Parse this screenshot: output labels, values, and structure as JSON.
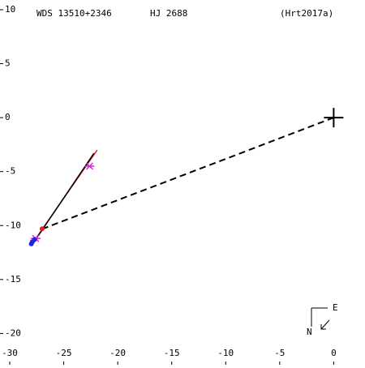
{
  "chart_data": {
    "type": "scatter",
    "header": [
      "WDS 13510+2346",
      "HJ 2688",
      "(Hrt2017a)"
    ],
    "compass": {
      "north": "N",
      "east": "E"
    },
    "xlim": [
      -30.9,
      2.9
    ],
    "ylim": [
      -22.9,
      10.9
    ],
    "xticks": [
      -30,
      -25,
      -20,
      -15,
      -10,
      -5,
      0
    ],
    "yticks": [
      10,
      5,
      0,
      -5,
      -10,
      -15,
      -20
    ],
    "series": [
      {
        "style": "dashed",
        "color": "#000000",
        "x": [
          0,
          -27.2
        ],
        "values": [
          0,
          -10.4
        ]
      },
      {
        "style": "line",
        "color": "#dd2222",
        "x": [
          -28.0,
          -21.9
        ],
        "values": [
          -11.8,
          -3.0
        ]
      },
      {
        "style": "line",
        "color": "#000000",
        "x": [
          -27.8,
          -22.2
        ],
        "values": [
          -11.6,
          -3.3
        ]
      },
      {
        "style": "star",
        "color": "#dd22dd",
        "x": [
          -22.6,
          -27.6
        ],
        "values": [
          -4.5,
          -11.2
        ]
      },
      {
        "style": "point",
        "color": "#2222dd",
        "x": [
          -27.9,
          -27.7,
          -28.0
        ],
        "values": [
          -11.5,
          -11.3,
          -11.7
        ]
      },
      {
        "style": "point",
        "color": "#dd2222",
        "x": [
          -27.0
        ],
        "values": [
          -10.3
        ]
      },
      {
        "style": "cross",
        "color": "#000000",
        "x": [
          0
        ],
        "values": [
          0
        ]
      }
    ]
  }
}
